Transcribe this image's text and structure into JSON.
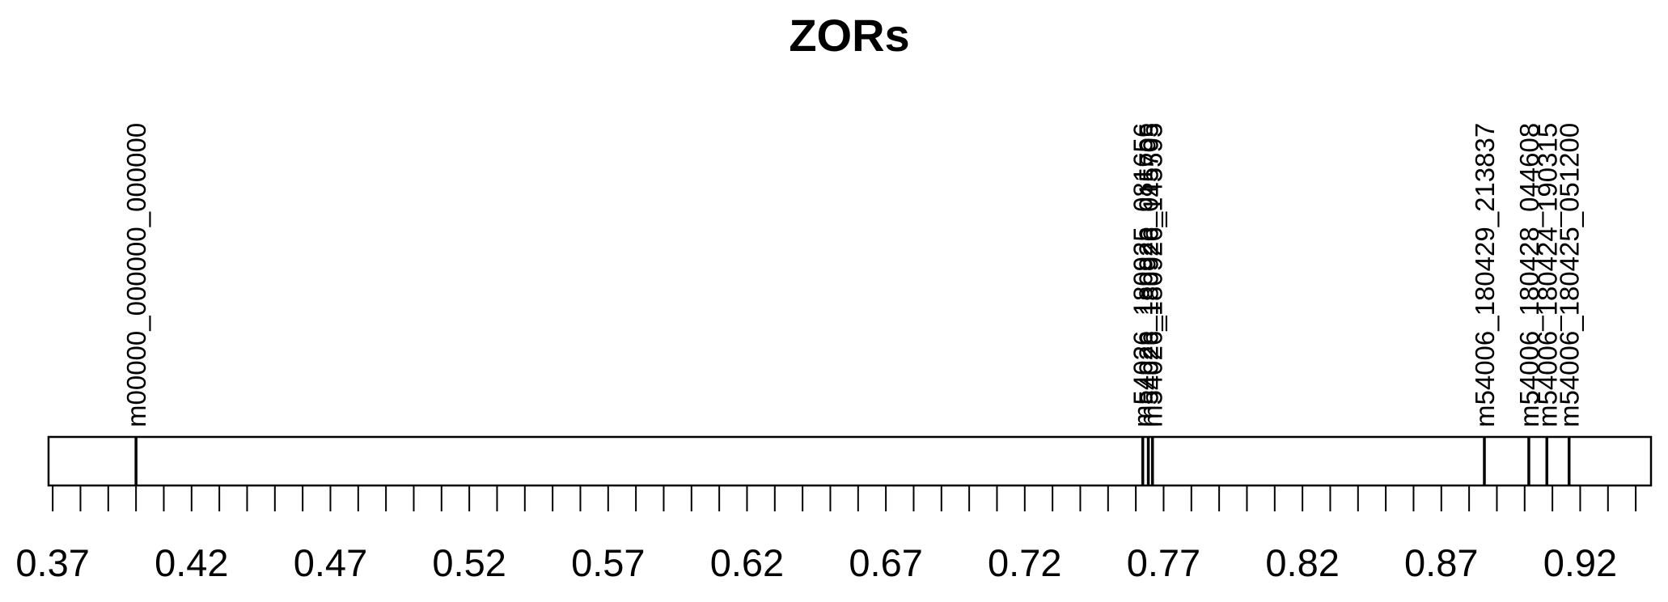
{
  "chart_data": {
    "type": "strip",
    "title": "ZORs",
    "xlabel": "",
    "ylabel": "",
    "xlim": [
      0.3685,
      0.9455
    ],
    "tick_step": 0.01,
    "tick_labels": [
      "0.37",
      "0.42",
      "0.47",
      "0.52",
      "0.57",
      "0.62",
      "0.67",
      "0.72",
      "0.77",
      "0.82",
      "0.87",
      "0.92"
    ],
    "markers": [
      {
        "label": "m00000_000000_000000",
        "x": 0.4
      },
      {
        "label": "m54026_180925_081656",
        "x": 0.7625
      },
      {
        "label": "m54026_180926_015705",
        "x": 0.7645
      },
      {
        "label": "m54026_180926_145595",
        "x": 0.766
      },
      {
        "label": "m54006_180429_213837",
        "x": 0.8855
      },
      {
        "label": "m54006_180428_044608",
        "x": 0.9015
      },
      {
        "label": "m54006_180424_190315",
        "x": 0.908
      },
      {
        "label": "m54006_180425_051200",
        "x": 0.916
      }
    ],
    "grid": false,
    "legend": "none"
  }
}
